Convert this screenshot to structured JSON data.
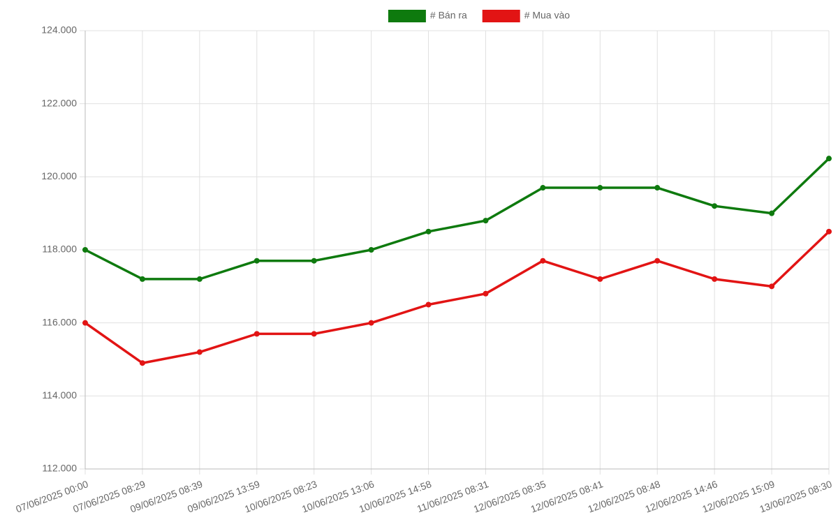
{
  "chart_data": {
    "type": "line",
    "categories": [
      "07/06/2025 00:00",
      "07/06/2025 08:29",
      "09/06/2025 08:39",
      "09/06/2025 13:59",
      "10/06/2025 08:23",
      "10/06/2025 13:06",
      "10/06/2025 14:58",
      "11/06/2025 08:31",
      "12/06/2025 08:35",
      "12/06/2025 08:41",
      "12/06/2025 08:48",
      "12/06/2025 14:46",
      "12/06/2025 15:09",
      "13/06/2025 08:30"
    ],
    "series": [
      {
        "name": "# Bán ra",
        "color": "#0e7a0e",
        "values": [
          118000,
          117200,
          117200,
          117700,
          117700,
          118000,
          118500,
          118800,
          119700,
          119700,
          119700,
          119200,
          119000,
          120500
        ]
      },
      {
        "name": "# Mua vào",
        "color": "#e21414",
        "values": [
          116000,
          114900,
          115200,
          115700,
          115700,
          116000,
          116500,
          116800,
          117700,
          117200,
          117700,
          117200,
          117000,
          118500
        ]
      }
    ],
    "ylim": [
      112000,
      124000
    ],
    "yticks": [
      {
        "value": 112000,
        "label": "112.000"
      },
      {
        "value": 114000,
        "label": "114.000"
      },
      {
        "value": 116000,
        "label": "116.000"
      },
      {
        "value": 118000,
        "label": "118.000"
      },
      {
        "value": 120000,
        "label": "120.000"
      },
      {
        "value": 122000,
        "label": "122.000"
      },
      {
        "value": 124000,
        "label": "124.000"
      }
    ],
    "grid": true,
    "legend": "top"
  }
}
